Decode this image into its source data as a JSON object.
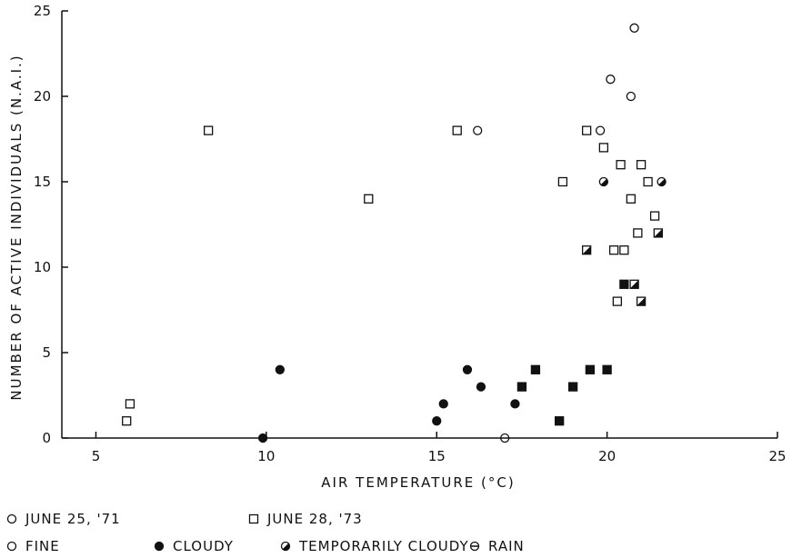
{
  "chart_data": {
    "type": "scatter",
    "xlabel": "AIR   TEMPERATURE   (°C)",
    "ylabel": "NUMBER OF ACTIVE INDIVIDUALS (N.A.I.)",
    "xlim": [
      4,
      25
    ],
    "ylim": [
      0,
      25
    ],
    "x_ticks": [
      5,
      10,
      15,
      20,
      25
    ],
    "y_ticks": [
      0,
      5,
      10,
      15,
      20,
      25
    ],
    "x_tick_labels": [
      "5",
      "10",
      "15",
      "20",
      "25"
    ],
    "y_tick_labels": [
      "0",
      "5",
      "10",
      "15",
      "20",
      "25"
    ],
    "points": [
      {
        "x": 16.2,
        "y": 18,
        "date": "june71",
        "weather": "fine"
      },
      {
        "x": 19.8,
        "y": 18,
        "date": "june71",
        "weather": "fine"
      },
      {
        "x": 20.1,
        "y": 21,
        "date": "june71",
        "weather": "fine"
      },
      {
        "x": 20.8,
        "y": 24,
        "date": "june71",
        "weather": "fine"
      },
      {
        "x": 20.7,
        "y": 20,
        "date": "june71",
        "weather": "fine"
      },
      {
        "x": 10.4,
        "y": 4,
        "date": "june71",
        "weather": "cloudy"
      },
      {
        "x": 9.9,
        "y": 0,
        "date": "june71",
        "weather": "cloudy"
      },
      {
        "x": 15.0,
        "y": 1,
        "date": "june71",
        "weather": "cloudy"
      },
      {
        "x": 15.2,
        "y": 2,
        "date": "june71",
        "weather": "cloudy"
      },
      {
        "x": 15.9,
        "y": 4,
        "date": "june71",
        "weather": "cloudy"
      },
      {
        "x": 16.3,
        "y": 3,
        "date": "june71",
        "weather": "cloudy"
      },
      {
        "x": 17.3,
        "y": 2,
        "date": "june71",
        "weather": "cloudy"
      },
      {
        "x": 19.9,
        "y": 15,
        "date": "june71",
        "weather": "temporarily cloudy"
      },
      {
        "x": 21.6,
        "y": 15,
        "date": "june71",
        "weather": "temporarily cloudy"
      },
      {
        "x": 17.0,
        "y": 0,
        "date": "june71",
        "weather": "rain"
      },
      {
        "x": 5.9,
        "y": 1,
        "date": "june73",
        "weather": "fine"
      },
      {
        "x": 6.0,
        "y": 2,
        "date": "june73",
        "weather": "fine"
      },
      {
        "x": 8.3,
        "y": 18,
        "date": "june73",
        "weather": "fine"
      },
      {
        "x": 13.0,
        "y": 14,
        "date": "june73",
        "weather": "fine"
      },
      {
        "x": 15.6,
        "y": 18,
        "date": "june73",
        "weather": "fine"
      },
      {
        "x": 18.7,
        "y": 15,
        "date": "june73",
        "weather": "fine"
      },
      {
        "x": 19.4,
        "y": 18,
        "date": "june73",
        "weather": "fine"
      },
      {
        "x": 19.9,
        "y": 17,
        "date": "june73",
        "weather": "fine"
      },
      {
        "x": 20.2,
        "y": 11,
        "date": "june73",
        "weather": "fine"
      },
      {
        "x": 20.3,
        "y": 8,
        "date": "june73",
        "weather": "fine"
      },
      {
        "x": 20.4,
        "y": 16,
        "date": "june73",
        "weather": "fine"
      },
      {
        "x": 20.5,
        "y": 11,
        "date": "june73",
        "weather": "fine"
      },
      {
        "x": 20.7,
        "y": 14,
        "date": "june73",
        "weather": "fine"
      },
      {
        "x": 20.9,
        "y": 12,
        "date": "june73",
        "weather": "fine"
      },
      {
        "x": 21.0,
        "y": 16,
        "date": "june73",
        "weather": "fine"
      },
      {
        "x": 21.2,
        "y": 15,
        "date": "june73",
        "weather": "fine"
      },
      {
        "x": 21.4,
        "y": 13,
        "date": "june73",
        "weather": "fine"
      },
      {
        "x": 17.5,
        "y": 3,
        "date": "june73",
        "weather": "cloudy"
      },
      {
        "x": 17.9,
        "y": 4,
        "date": "june73",
        "weather": "cloudy"
      },
      {
        "x": 18.6,
        "y": 1,
        "date": "june73",
        "weather": "cloudy"
      },
      {
        "x": 19.0,
        "y": 3,
        "date": "june73",
        "weather": "cloudy"
      },
      {
        "x": 19.5,
        "y": 4,
        "date": "june73",
        "weather": "cloudy"
      },
      {
        "x": 20.0,
        "y": 4,
        "date": "june73",
        "weather": "cloudy"
      },
      {
        "x": 20.5,
        "y": 9,
        "date": "june73",
        "weather": "cloudy"
      },
      {
        "x": 19.4,
        "y": 11,
        "date": "june73",
        "weather": "temporarily cloudy"
      },
      {
        "x": 20.8,
        "y": 9,
        "date": "june73",
        "weather": "temporarily cloudy"
      },
      {
        "x": 21.0,
        "y": 8,
        "date": "june73",
        "weather": "temporarily cloudy"
      },
      {
        "x": 21.5,
        "y": 12,
        "date": "june73",
        "weather": "temporarily cloudy"
      }
    ],
    "legend": {
      "dates": [
        {
          "key": "june71",
          "label": "JUNE 25, '71",
          "marker": "circle"
        },
        {
          "key": "june73",
          "label": "JUNE 28, '73",
          "marker": "square"
        }
      ],
      "weather": [
        {
          "key": "fine",
          "label": "FINE",
          "fill": "open"
        },
        {
          "key": "cloudy",
          "label": "CLOUDY",
          "fill": "solid"
        },
        {
          "key": "temporarily cloudy",
          "label": "TEMPORARILY CLOUDY",
          "fill": "half"
        },
        {
          "key": "rain",
          "label": "RAIN",
          "fill": "bar"
        }
      ],
      "placement": "bottom"
    },
    "grid": false
  }
}
